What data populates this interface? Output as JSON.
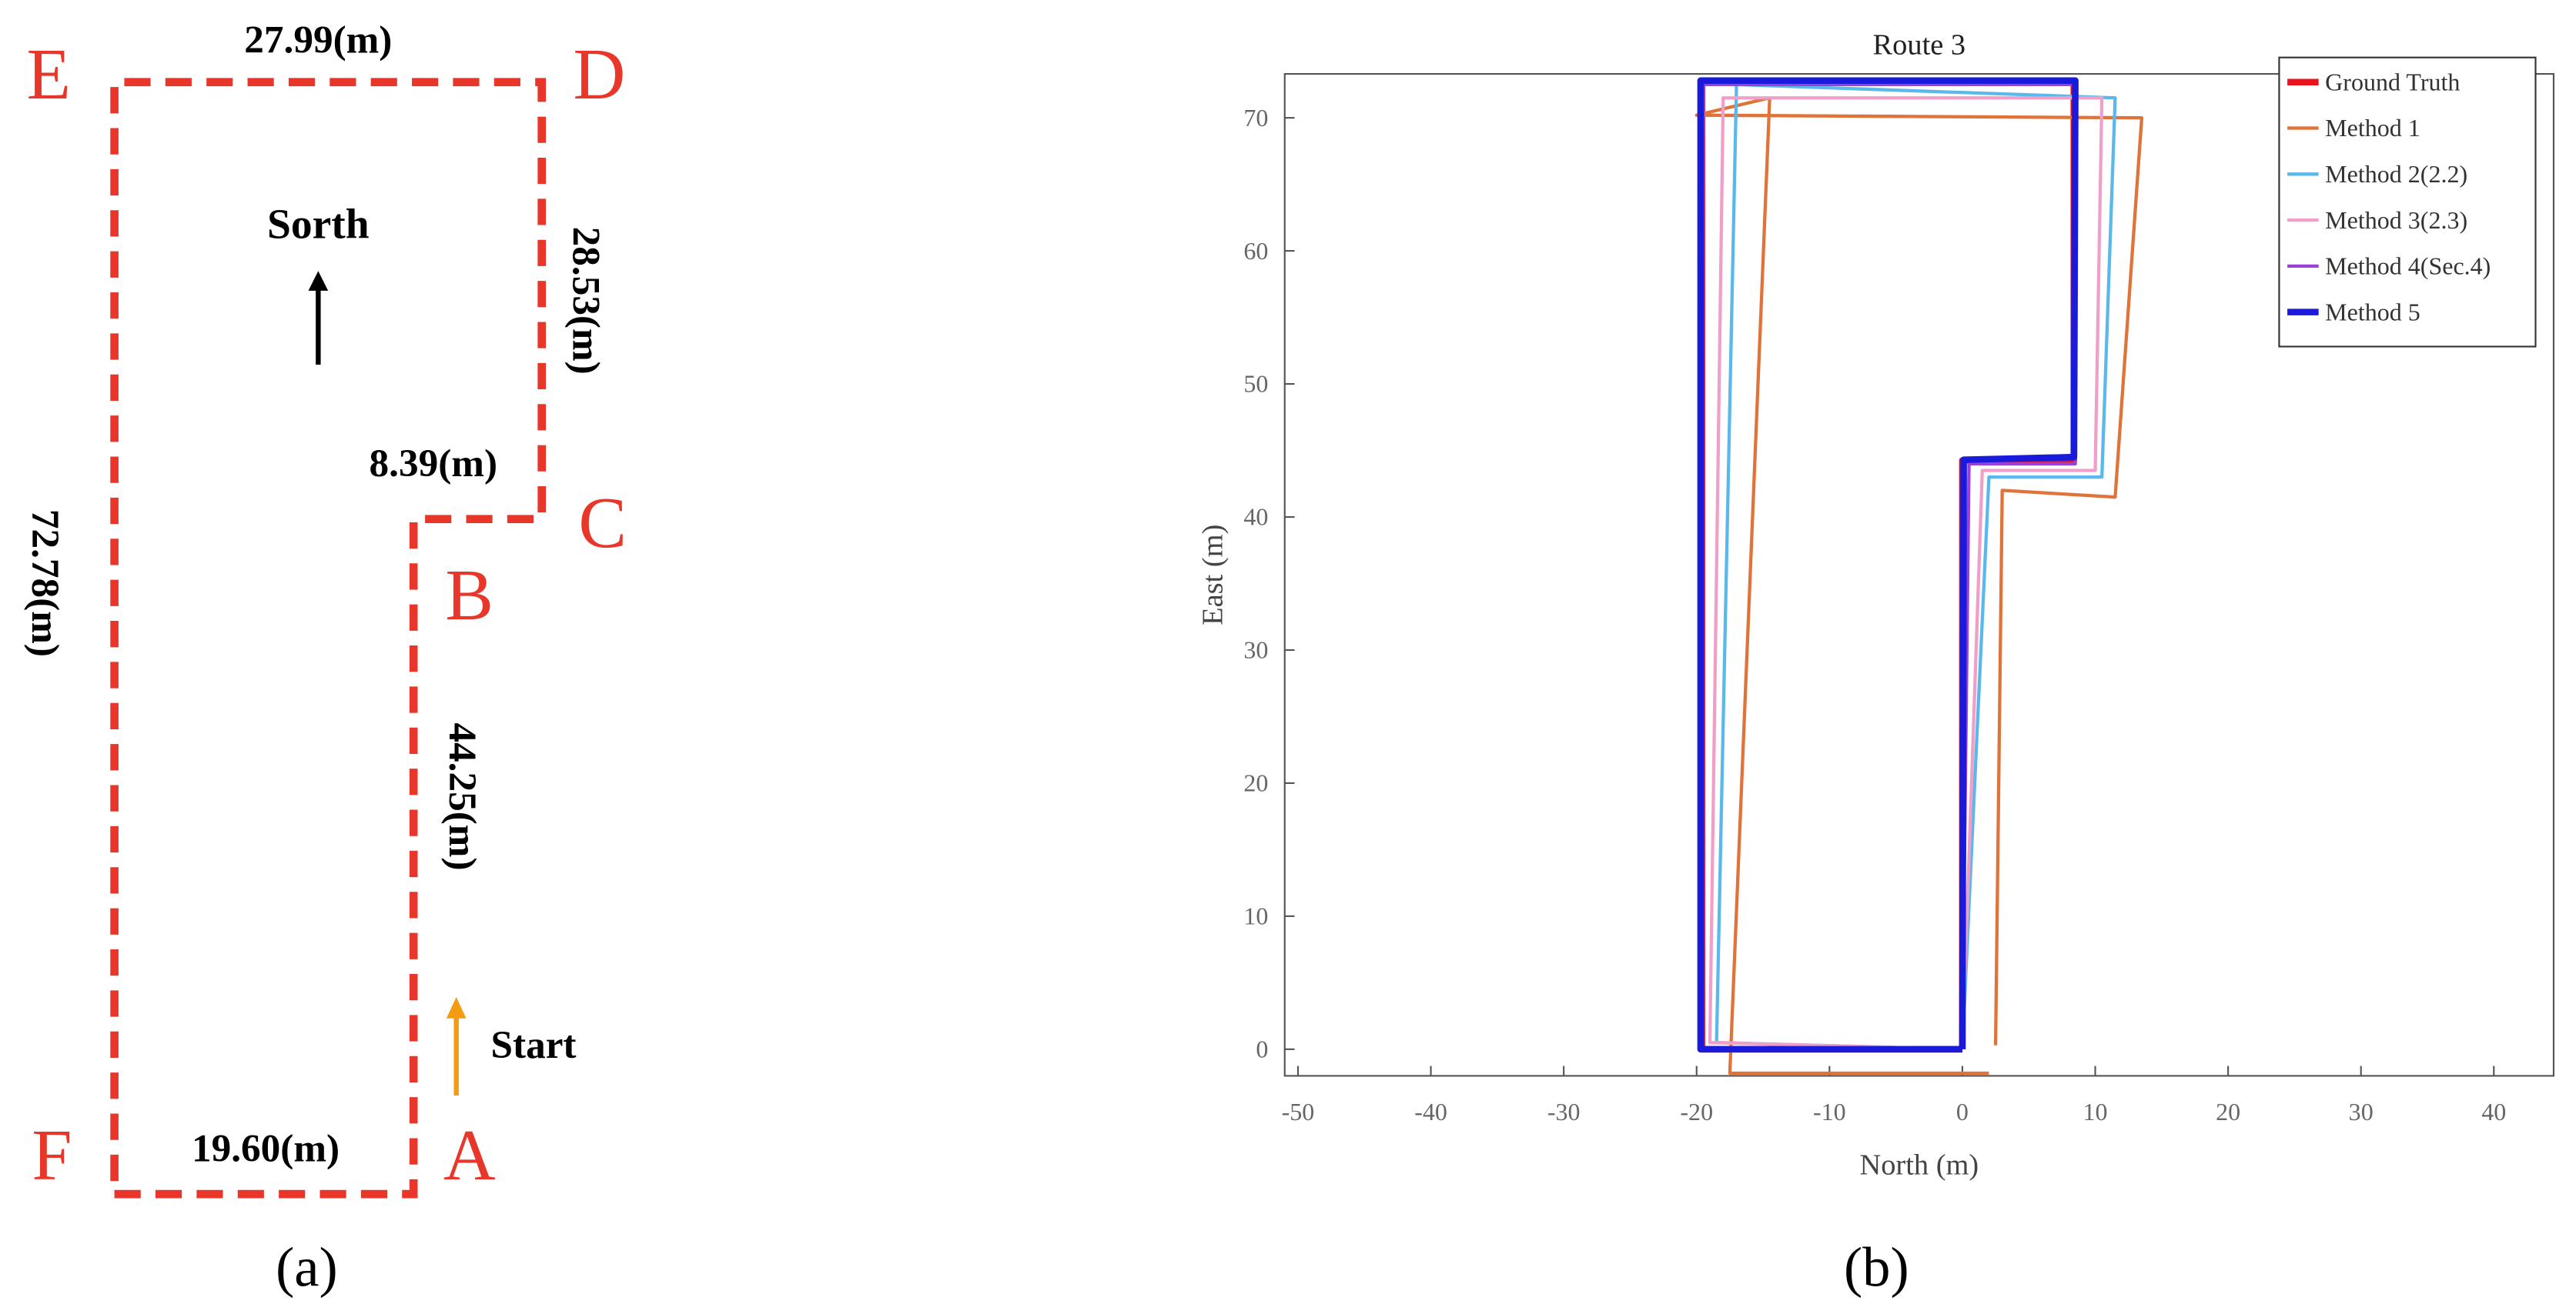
{
  "diagram": {
    "points": [
      "A",
      "B",
      "C",
      "D",
      "E",
      "F"
    ],
    "segments": [
      "44.25(m)",
      "8.39(m)",
      "28.53(m)",
      "27.99(m)",
      "72.78(m)",
      "19.60(m)"
    ],
    "direction_label": "Sorth",
    "start_label": "Start"
  },
  "captions": [
    "(a)",
    "(b)"
  ],
  "chart_data": {
    "type": "line",
    "title": "Route 3",
    "xlabel": "North (m)",
    "ylabel": "East (m)",
    "xlim": [
      -51,
      44.5
    ],
    "ylim": [
      -2,
      73.3
    ],
    "xticks": [
      -50,
      -40,
      -30,
      -20,
      -10,
      0,
      10,
      20,
      30,
      40
    ],
    "yticks": [
      0,
      10,
      20,
      30,
      40,
      50,
      60,
      70
    ],
    "legend": "upper right",
    "series": [
      {
        "name": "Ground Truth",
        "color": "#e8141c",
        "linewidth": 4,
        "x": [
          0,
          0,
          8.39,
          8.39,
          -19.6,
          -19.6,
          0
        ],
        "values": [
          0,
          44.25,
          44.25,
          72.78,
          72.78,
          0,
          0
        ]
      },
      {
        "name": "Method 1",
        "color": "#e0733a",
        "linewidth": 2,
        "x": [
          2.5,
          3,
          11.5,
          13.5,
          -20,
          -14.5,
          -17.5,
          2
        ],
        "values": [
          0.3,
          42,
          41.5,
          70,
          70.2,
          71.5,
          -1.8,
          -1.8
        ]
      },
      {
        "name": "Method 2(2.2)",
        "color": "#5bb8ea",
        "linewidth": 2,
        "x": [
          0,
          2,
          10.5,
          11.5,
          -17,
          -18.5,
          0
        ],
        "values": [
          0,
          43,
          43,
          71.5,
          72.5,
          0.5,
          0
        ]
      },
      {
        "name": "Method 3(2.3)",
        "color": "#f0a0c8",
        "linewidth": 2,
        "x": [
          0,
          1.5,
          10,
          10.5,
          -18,
          -19,
          0
        ],
        "values": [
          0,
          43.5,
          43.5,
          71.5,
          71.5,
          0.5,
          0
        ]
      },
      {
        "name": "Method 4(Sec.4)",
        "color": "#9b3fd6",
        "linewidth": 2,
        "x": [
          0,
          0.5,
          8.5,
          8.5,
          -19.5,
          -19.8,
          0
        ],
        "values": [
          0,
          44,
          44,
          72.5,
          72.5,
          0,
          0
        ]
      },
      {
        "name": "Method 5",
        "color": "#1a1adb",
        "linewidth": 4,
        "x": [
          0,
          0.1,
          8.4,
          8.5,
          -19.7,
          -19.7,
          0
        ],
        "values": [
          0,
          44.3,
          44.5,
          72.8,
          72.8,
          0,
          0
        ]
      }
    ]
  }
}
